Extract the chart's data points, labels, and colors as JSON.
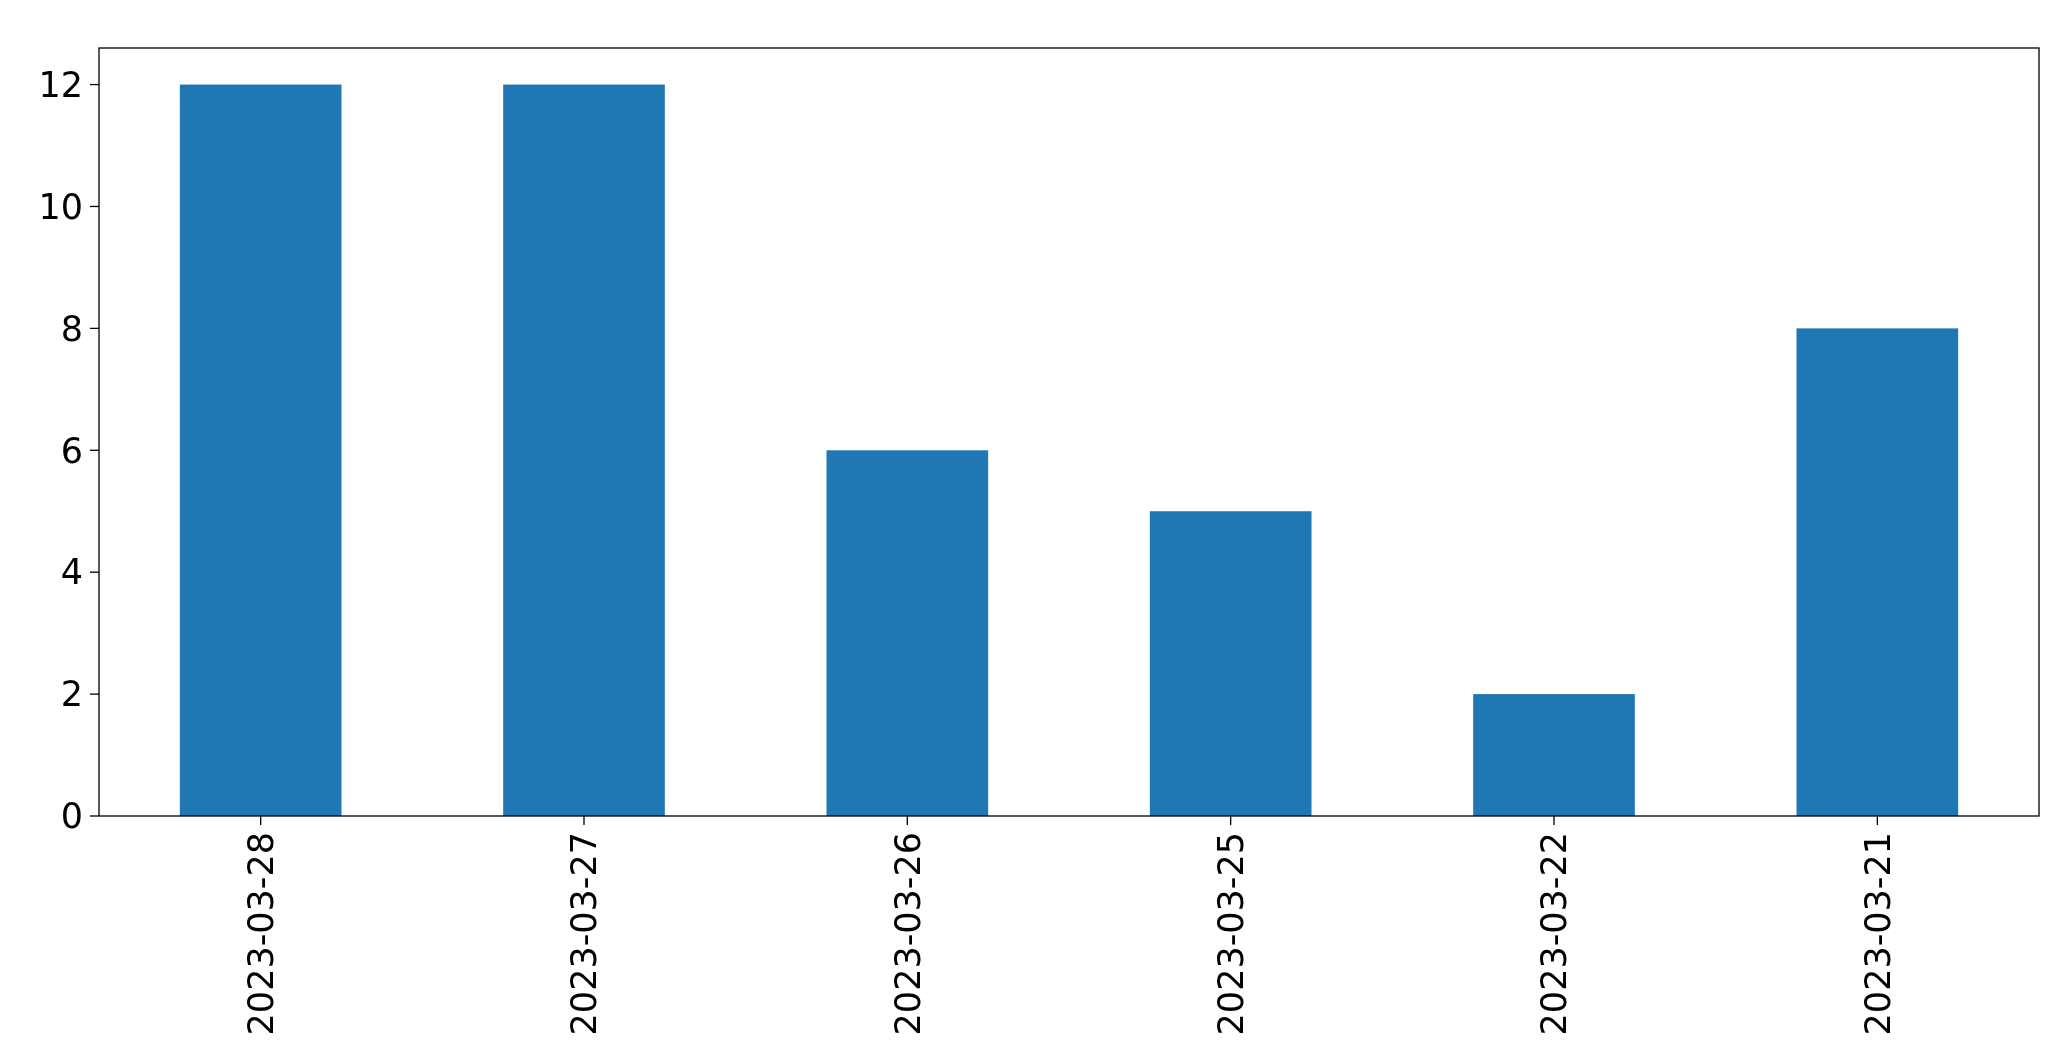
{
  "chart_data": {
    "type": "bar",
    "categories": [
      "2023-03-28",
      "2023-03-27",
      "2023-03-26",
      "2023-03-25",
      "2023-03-22",
      "2023-03-21"
    ],
    "values": [
      12,
      12,
      6,
      5,
      2,
      8
    ],
    "color": "#1f77b4",
    "ylim": [
      0,
      12.6
    ],
    "yticks": [
      0,
      2,
      4,
      6,
      8,
      10,
      12
    ],
    "grid": false
  }
}
